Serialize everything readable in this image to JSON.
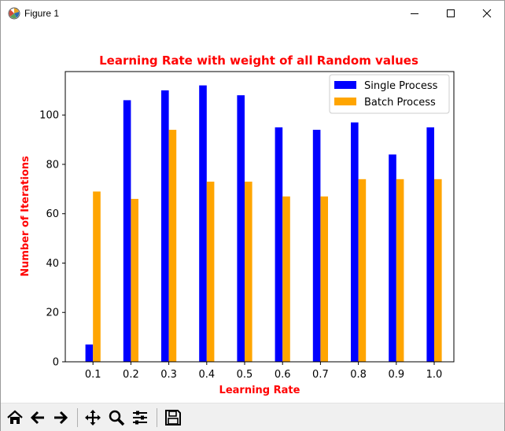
{
  "window": {
    "title": "Figure 1",
    "app_icon": "matplotlib-icon",
    "controls": [
      "minimize-icon",
      "maximize-icon",
      "close-icon"
    ]
  },
  "toolbar": {
    "tools": [
      {
        "name": "home-icon",
        "tooltip": "Reset original view"
      },
      {
        "name": "back-arrow-icon",
        "tooltip": "Back to previous view"
      },
      {
        "name": "forward-arrow-icon",
        "tooltip": "Forward to next view"
      },
      {
        "name": "pan-icon",
        "tooltip": "Pan axes"
      },
      {
        "name": "zoom-icon",
        "tooltip": "Zoom to rectangle"
      },
      {
        "name": "subplots-icon",
        "tooltip": "Configure subplots"
      },
      {
        "name": "save-icon",
        "tooltip": "Save the figure"
      }
    ]
  },
  "chart_data": {
    "type": "bar",
    "title": "Learning Rate with weight of all Random values",
    "xlabel": "Learning Rate",
    "ylabel": "Number of Iterations",
    "categories": [
      "0.1",
      "0.2",
      "0.3",
      "0.4",
      "0.5",
      "0.6",
      "0.7",
      "0.8",
      "0.9",
      "1.0"
    ],
    "series": [
      {
        "name": "Single Process",
        "color": "#0000ff",
        "values": [
          7,
          106,
          110,
          112,
          108,
          95,
          94,
          97,
          84,
          95
        ]
      },
      {
        "name": "Batch Process",
        "color": "#ffa500",
        "values": [
          69,
          66,
          94,
          73,
          73,
          67,
          67,
          74,
          74,
          74
        ]
      }
    ],
    "ylim": [
      0,
      117.6
    ],
    "yticks": [
      0,
      20,
      40,
      60,
      80,
      100
    ],
    "title_color": "#ff0000",
    "label_color": "#ff0000",
    "legend_position": "upper right",
    "grid": false
  }
}
